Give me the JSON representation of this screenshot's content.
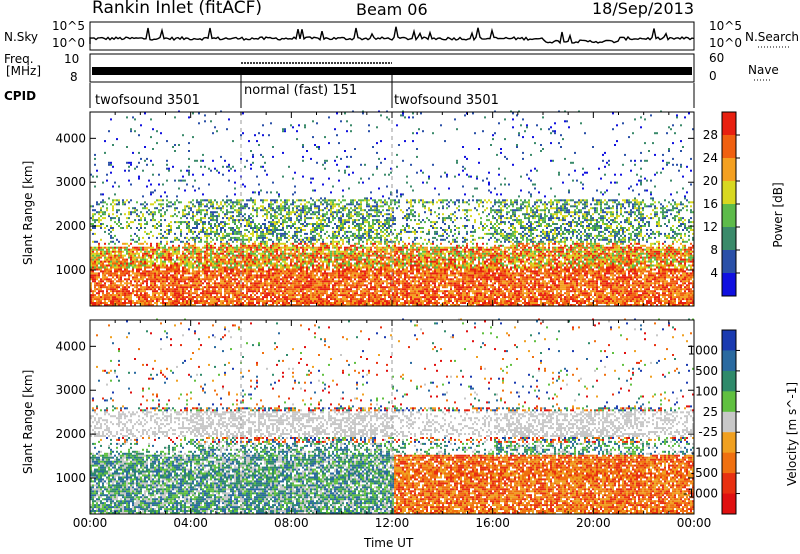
{
  "header": {
    "station": "Rankin Inlet (fitACF)",
    "beam": "Beam 06",
    "date": "18/Sep/2013"
  },
  "top_panels": {
    "nsky_label": "N.Sky",
    "nsky_ticks": [
      "10^5",
      "10^0"
    ],
    "nsearch_label": "N.Search",
    "nsearch_ticks": [
      "10^5",
      "10^0"
    ],
    "freq_label": "Freq.",
    "freq_unit": "[MHz]",
    "freq_ticks": [
      "10",
      "8"
    ],
    "nave_label": "Nave",
    "nave_ticks": [
      "60",
      "0"
    ],
    "cpid_label": "CPID",
    "cpid_segments": [
      {
        "label": "twofsound 3501",
        "start": 0,
        "end": 6
      },
      {
        "label": "normal (fast) 151",
        "start": 6,
        "end": 12
      },
      {
        "label": "twofsound 3501",
        "start": 12,
        "end": 24
      }
    ]
  },
  "chart_data": [
    {
      "type": "heatmap",
      "name": "power",
      "ylabel": "Slant Range [km]",
      "yticks": [
        1000,
        2000,
        3000,
        4000
      ],
      "ylim": [
        180,
        4600
      ],
      "xlim": [
        0,
        24
      ],
      "colorbar_label": "Power [dB]",
      "colorbar_ticks": [
        4,
        8,
        12,
        16,
        20,
        24,
        28
      ],
      "colorbar_colors": [
        "#1010e0",
        "#2a50a8",
        "#3a8a6a",
        "#5dbb4a",
        "#d8d820",
        "#f4a020",
        "#f06010",
        "#e82010"
      ]
    },
    {
      "type": "heatmap",
      "name": "velocity",
      "ylabel": "Slant Range [km]",
      "yticks": [
        1000,
        2000,
        3000,
        4000
      ],
      "ylim": [
        180,
        4600
      ],
      "xlim": [
        0,
        24
      ],
      "xlabel": "Time UT",
      "xticks": [
        "00:00",
        "04:00",
        "08:00",
        "12:00",
        "16:00",
        "20:00",
        "00:00"
      ],
      "colorbar_label": "Velocity [m s^-1]",
      "colorbar_ticks": [
        "1000",
        "500",
        "100",
        "25",
        "-25",
        "-100",
        "-500",
        "-1000"
      ],
      "colorbar_colors": [
        "#1a3ab0",
        "#2a6aa0",
        "#2f8a6a",
        "#60c040",
        "#c8c8c8",
        "#f0a020",
        "#f07010",
        "#e83010",
        "#e01010"
      ]
    }
  ]
}
